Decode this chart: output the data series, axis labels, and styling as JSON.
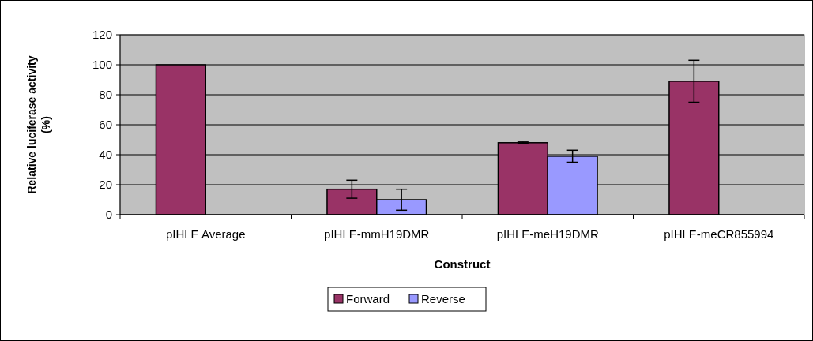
{
  "chart_data": {
    "type": "bar",
    "xlabel": "Construct",
    "ylabel": "Relative luciferase activity (%)",
    "categories": [
      "pIHLE Average",
      "pIHLE-mmH19DMR",
      "pIHLE-meH19DMR",
      "pIHLE-meCR855994"
    ],
    "series": [
      {
        "name": "Forward",
        "color": "#993366",
        "values": [
          100,
          17,
          48,
          89
        ],
        "errors": [
          null,
          6,
          0.5,
          14
        ]
      },
      {
        "name": "Reverse",
        "color": "#9999ff",
        "values": [
          null,
          10,
          39,
          null
        ],
        "errors": [
          null,
          7,
          4,
          null
        ]
      }
    ],
    "ylim": [
      0,
      120
    ],
    "yticks": [
      0,
      20,
      40,
      60,
      80,
      100,
      120
    ],
    "grid": "y",
    "legend": "bottom"
  }
}
